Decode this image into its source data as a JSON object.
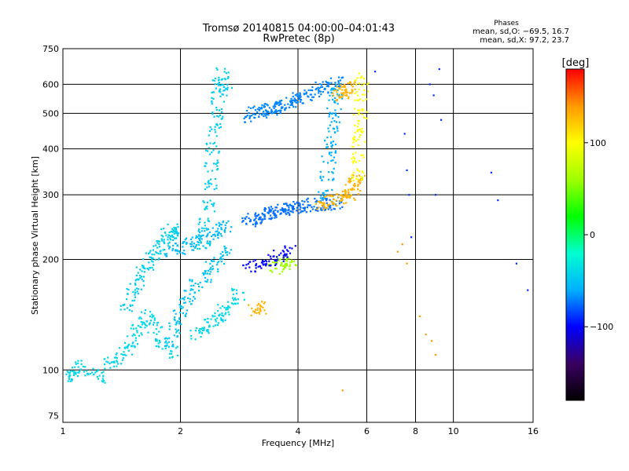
{
  "chart_data": {
    "type": "scatter",
    "title": "Tromsø 20140815 04:00:00–04:01:43",
    "subtitle": "RwPretec (8p)",
    "xlabel": "Frequency [MHz]",
    "ylabel": "Stationary phase Virtual Height [km]",
    "x_scale": "log",
    "y_scale": "log",
    "xlim": [
      1,
      16
    ],
    "ylim": [
      72,
      750
    ],
    "x_ticks": [
      1,
      2,
      4,
      6,
      8,
      10,
      16
    ],
    "x_tick_labels": [
      "1",
      "2",
      "4",
      "6",
      "8",
      "10",
      "16"
    ],
    "y_ticks": [
      75,
      100,
      200,
      300,
      400,
      500,
      600,
      750
    ],
    "y_tick_labels": [
      "75",
      "100",
      "200",
      "300",
      "400",
      "500",
      "600",
      "750"
    ],
    "grid": true,
    "legend": {
      "title": "Phases",
      "line1": "mean, sd,O: −69.5, 16.7",
      "line2": "mean, sd,X:  97.2, 23.7",
      "placement": "top-right"
    },
    "colorbar": {
      "label": "[deg]",
      "range": [
        -180,
        180
      ],
      "ticks": [
        100,
        0,
        -100
      ],
      "tick_labels": [
        "100",
        "0",
        "−100"
      ],
      "colors": [
        "#000000",
        "#3a0060",
        "#0000ff",
        "#00b0ff",
        "#00ffd0",
        "#00ff00",
        "#a0ff00",
        "#ffff00",
        "#ff9900",
        "#ff0000"
      ]
    },
    "series": [
      {
        "x": [
          1.02,
          1.05,
          1.1,
          1.18,
          1.25,
          1.32,
          1.4,
          1.45,
          1.5,
          1.55,
          1.6,
          1.65,
          1.72,
          1.8,
          1.9
        ],
        "y": [
          97,
          96,
          102,
          100,
          96,
          104,
          108,
          114,
          120,
          128,
          135,
          140,
          130,
          118,
          112
        ],
        "phase": -40
      },
      {
        "x": [
          1.45,
          1.5,
          1.55,
          1.6,
          1.65,
          1.7,
          1.75,
          1.8,
          1.85,
          1.9,
          1.95
        ],
        "y": [
          150,
          160,
          170,
          185,
          195,
          205,
          215,
          225,
          235,
          240,
          232
        ],
        "phase": -45
      },
      {
        "x": [
          1.9,
          1.95,
          2.0,
          2.05,
          2.1,
          2.2,
          2.3,
          2.4,
          2.5,
          2.6
        ],
        "y": [
          120,
          130,
          140,
          150,
          160,
          170,
          180,
          190,
          200,
          210
        ],
        "phase": -50
      },
      {
        "x": [
          2.3,
          2.32,
          2.35,
          2.38,
          2.4,
          2.42,
          2.45,
          2.48,
          2.5,
          2.52,
          2.55,
          2.6
        ],
        "y": [
          220,
          250,
          280,
          320,
          360,
          400,
          450,
          500,
          550,
          600,
          640,
          580
        ],
        "phase": -45
      },
      {
        "x": [
          2.2,
          2.3,
          2.4,
          2.5,
          2.6,
          2.7,
          2.8
        ],
        "y": [
          125,
          130,
          135,
          140,
          145,
          150,
          160
        ],
        "phase": -40
      },
      {
        "x": [
          1.9,
          2.0,
          2.1,
          2.2,
          2.3,
          2.4,
          2.5,
          2.6
        ],
        "y": [
          210,
          215,
          220,
          225,
          230,
          235,
          240,
          245
        ],
        "phase": -55
      },
      {
        "x": [
          3.0,
          3.1,
          3.2,
          3.3,
          3.4,
          3.5,
          3.6,
          3.7,
          3.8,
          3.9,
          4.0,
          4.2,
          4.4,
          4.6,
          4.8,
          5.0
        ],
        "y": [
          255,
          258,
          262,
          265,
          268,
          270,
          272,
          274,
          275,
          276,
          278,
          280,
          282,
          283,
          284,
          285
        ],
        "phase": -75
      },
      {
        "x": [
          3.0,
          3.1,
          3.2,
          3.3,
          3.4,
          3.5,
          3.6,
          3.7,
          3.8,
          3.9,
          4.0,
          4.2,
          4.4,
          4.6,
          4.8,
          5.0
        ],
        "y": [
          490,
          500,
          505,
          510,
          515,
          520,
          525,
          530,
          535,
          540,
          550,
          560,
          575,
          590,
          600,
          605
        ],
        "phase": -70
      },
      {
        "x": [
          4.7,
          4.75,
          4.8,
          4.85,
          4.9,
          4.95,
          5.0,
          5.05
        ],
        "y": [
          300,
          340,
          380,
          420,
          460,
          500,
          540,
          580
        ],
        "phase": -60
      },
      {
        "x": [
          4.6,
          4.8,
          5.0,
          5.2,
          5.4,
          5.5,
          5.6,
          5.7
        ],
        "y": [
          285,
          288,
          290,
          295,
          300,
          310,
          320,
          330
        ],
        "phase": 130
      },
      {
        "x": [
          5.65,
          5.7,
          5.72,
          5.75,
          5.78,
          5.8,
          5.82
        ],
        "y": [
          340,
          380,
          420,
          460,
          500,
          560,
          620
        ],
        "phase": 100
      },
      {
        "x": [
          5.1,
          5.2,
          5.3,
          5.4
        ],
        "y": [
          560,
          570,
          580,
          590
        ],
        "phase": 130
      },
      {
        "x": [
          3.5,
          3.6,
          3.7,
          3.8
        ],
        "y": [
          190,
          195,
          200,
          195
        ],
        "phase": 60
      },
      {
        "x": [
          3.1,
          3.2
        ],
        "y": [
          145,
          148
        ],
        "phase": 130
      },
      {
        "x": [
          3.0,
          3.2,
          3.4,
          3.6,
          3.8
        ],
        "y": [
          190,
          195,
          200,
          205,
          210
        ],
        "phase": -100
      },
      {
        "x": [
          7.5,
          7.6,
          7.7,
          7.8,
          8.7,
          8.9,
          9.0,
          9.3,
          12.5,
          13.0,
          14.5,
          15.5,
          6.3,
          9.2
        ],
        "y": [
          440,
          350,
          300,
          230,
          600,
          560,
          300,
          480,
          345,
          290,
          195,
          165,
          650,
          660
        ],
        "phase": -90
      },
      {
        "x": [
          7.2,
          7.4,
          7.6,
          8.2,
          8.5,
          8.8,
          9.0,
          5.2
        ],
        "y": [
          210,
          220,
          195,
          140,
          125,
          120,
          110,
          88
        ],
        "phase": 140
      }
    ]
  }
}
